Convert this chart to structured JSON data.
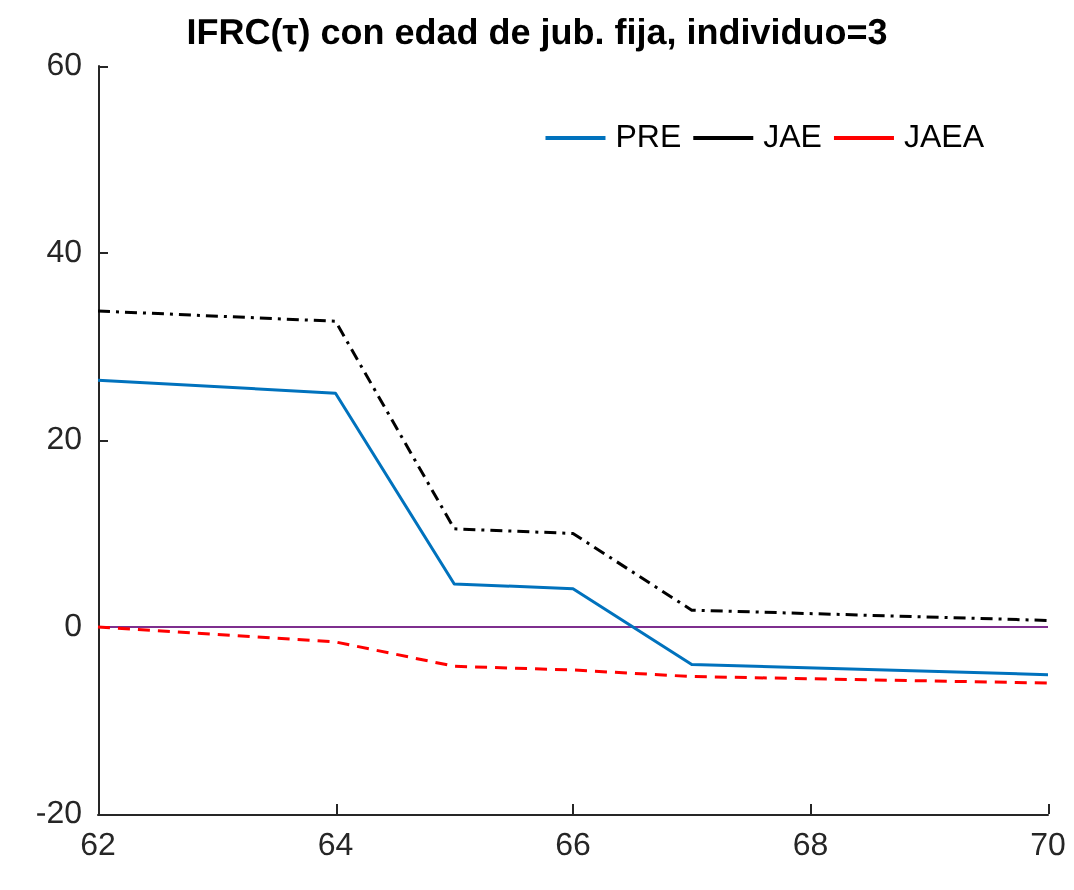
{
  "chart_data": {
    "type": "line",
    "title": "IFRC(τ) con edad de jub. fija, individuo=3",
    "x": [
      62,
      64,
      65,
      66,
      67,
      70
    ],
    "series": [
      {
        "name": "PRE",
        "color": "#0072bd",
        "line_style": "solid",
        "values": [
          26.4,
          25.0,
          4.6,
          4.1,
          -4.0,
          -5.1
        ]
      },
      {
        "name": "JAE",
        "color": "#000000",
        "line_style": "dashdot",
        "values": [
          33.8,
          32.7,
          10.5,
          10.0,
          1.8,
          0.7
        ]
      },
      {
        "name": "JAEA",
        "color": "#ff0000",
        "line_style": "dashed",
        "values": [
          0,
          -1.6,
          -4.2,
          -4.6,
          -5.3,
          -6.0
        ]
      }
    ],
    "xlim": [
      62,
      70
    ],
    "xticks": [
      62,
      64,
      66,
      68,
      70
    ],
    "ylim": [
      -20,
      60
    ],
    "yticks": [
      -20,
      0,
      20,
      40,
      60
    ],
    "ref_lines": [
      {
        "axis": "y",
        "value": 0,
        "color": "#7e2f8e",
        "line_style": "solid"
      }
    ],
    "grid": false,
    "legend": "top right",
    "marker": "none"
  }
}
